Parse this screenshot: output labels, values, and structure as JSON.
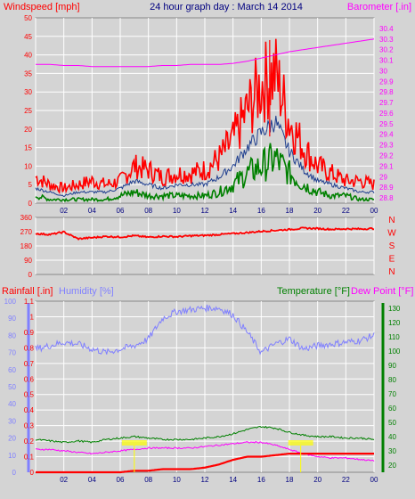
{
  "header": {
    "title": "24 hour graph day : March 14 2014",
    "left_label": "Windspeed [mph]",
    "right_label": "Barometer [.in]"
  },
  "colors": {
    "background": "#d4d4d4",
    "gridline": "#ffffff",
    "axis_text": "#000080",
    "wind_gust": "#ff0000",
    "wind_avg": "#1f3f8f",
    "wind_low": "#008000",
    "barometer": "#ff00ff",
    "direction": "#ff0000",
    "rainfall": "#ff0000",
    "humidity": "#8080ff",
    "temperature": "#008000",
    "dewpoint": "#ff00ff",
    "marker": "#ffff00"
  },
  "hour_labels": [
    "02",
    "04",
    "06",
    "08",
    "10",
    "12",
    "14",
    "16",
    "18",
    "20",
    "22",
    "00"
  ],
  "chart_data": [
    {
      "type": "line",
      "title": "24 hour graph day : March 14 2014",
      "xlabel": "",
      "ylabel": "Windspeed [mph]",
      "y2label": "Barometer [.in]",
      "ylim": [
        0,
        50
      ],
      "y2lim": [
        28.75,
        30.5
      ],
      "yticks": [
        "0",
        "5",
        "10",
        "15",
        "20",
        "25",
        "30",
        "35",
        "40",
        "45",
        "50"
      ],
      "y2ticks": [
        "28.8",
        "28.9",
        "29",
        "29.1",
        "29.2",
        "29.3",
        "29.4",
        "29.5",
        "29.6",
        "29.7",
        "29.8",
        "29.9",
        "30",
        "30.1",
        "30.2",
        "30.3",
        "30.4"
      ],
      "x": [
        0,
        1,
        2,
        3,
        4,
        5,
        6,
        7,
        8,
        9,
        10,
        11,
        12,
        13,
        14,
        15,
        16,
        17,
        18,
        19,
        20,
        21,
        22,
        23,
        24
      ],
      "series": [
        {
          "key": "gust",
          "values": [
            7,
            5,
            4,
            5,
            6,
            5,
            6,
            10,
            9,
            7,
            8,
            8,
            9,
            12,
            17,
            25,
            32,
            35,
            22,
            15,
            10,
            8,
            6,
            6,
            5
          ]
        },
        {
          "key": "avg",
          "values": [
            4,
            3,
            2,
            3,
            3,
            3,
            4,
            6,
            5,
            4,
            5,
            5,
            5,
            7,
            10,
            15,
            19,
            22,
            14,
            9,
            6,
            5,
            4,
            3,
            3
          ]
        },
        {
          "key": "low",
          "values": [
            2,
            1,
            1,
            1,
            1,
            1,
            2,
            3,
            2,
            2,
            2,
            2,
            2,
            3,
            5,
            8,
            10,
            12,
            8,
            5,
            3,
            2,
            2,
            1,
            1
          ]
        },
        {
          "key": "barometer",
          "axis": "y2",
          "values": [
            30.06,
            30.06,
            30.05,
            30.05,
            30.04,
            30.04,
            30.04,
            30.04,
            30.04,
            30.05,
            30.05,
            30.06,
            30.06,
            30.06,
            30.07,
            30.09,
            30.12,
            30.15,
            30.18,
            30.2,
            30.22,
            30.24,
            30.26,
            30.28,
            30.3
          ]
        }
      ]
    },
    {
      "type": "line",
      "ylabel": "",
      "ylim": [
        0,
        360
      ],
      "yticks": [
        "0",
        "90",
        "180",
        "270",
        "360"
      ],
      "compass": [
        "N",
        "W",
        "S",
        "E",
        "N"
      ],
      "x": [
        0,
        1,
        2,
        3,
        4,
        5,
        6,
        7,
        8,
        9,
        10,
        11,
        12,
        13,
        14,
        15,
        16,
        17,
        18,
        19,
        20,
        21,
        22,
        23,
        24
      ],
      "series": [
        {
          "key": "direction",
          "values": [
            258,
            252,
            268,
            225,
            232,
            240,
            236,
            244,
            235,
            241,
            238,
            244,
            246,
            252,
            258,
            264,
            272,
            278,
            284,
            292,
            290,
            285,
            288,
            287,
            290
          ]
        }
      ]
    },
    {
      "type": "line",
      "ylabel": "Rainfall [.in]",
      "y1label": "Humidity [%]",
      "y2label": "Temperature [°F]",
      "y3label": "Dew Point [°F]",
      "ylim": [
        0,
        1.1
      ],
      "y1lim": [
        0,
        100
      ],
      "y2lim": [
        15,
        135
      ],
      "yticks": [
        "0",
        "0.1",
        "0.2",
        "0.3",
        "0.4",
        "0.5",
        "0.6",
        "0.7",
        "0.8",
        "0.9",
        "1",
        "1.1"
      ],
      "y1ticks": [
        "0",
        "10",
        "20",
        "30",
        "40",
        "50",
        "60",
        "70",
        "80",
        "90",
        "100"
      ],
      "y2ticks": [
        "20",
        "30",
        "40",
        "50",
        "60",
        "70",
        "80",
        "90",
        "100",
        "110",
        "120",
        "130"
      ],
      "x": [
        0,
        1,
        2,
        3,
        4,
        5,
        6,
        7,
        8,
        9,
        10,
        11,
        12,
        13,
        14,
        15,
        16,
        17,
        18,
        19,
        20,
        21,
        22,
        23,
        24
      ],
      "series": [
        {
          "key": "humidity",
          "axis": "y1",
          "values": [
            72,
            74,
            76,
            75,
            72,
            70,
            72,
            74,
            78,
            90,
            94,
            95,
            96,
            96,
            92,
            82,
            70,
            75,
            78,
            72,
            74,
            75,
            76,
            77,
            80
          ]
        },
        {
          "key": "temperature",
          "axis": "y2",
          "values": [
            38,
            37,
            36,
            37,
            36,
            38,
            39,
            40,
            39,
            38,
            38,
            38,
            39,
            40,
            42,
            45,
            47,
            46,
            43,
            41,
            40,
            40,
            39,
            39,
            38
          ]
        },
        {
          "key": "dewpoint",
          "axis": "y2",
          "values": [
            31,
            31,
            30,
            29,
            28,
            29,
            30,
            31,
            32,
            32,
            32,
            32,
            33,
            34,
            35,
            36,
            36,
            34,
            31,
            28,
            26,
            25,
            25,
            24,
            23
          ]
        },
        {
          "key": "rainfall",
          "values": [
            0.0,
            0.0,
            0.0,
            0.0,
            0.0,
            0.0,
            0.0,
            0.01,
            0.01,
            0.02,
            0.02,
            0.02,
            0.03,
            0.05,
            0.08,
            0.1,
            0.1,
            0.11,
            0.12,
            0.12,
            0.12,
            0.12,
            0.12,
            0.12,
            0.12
          ]
        }
      ],
      "markers": [
        7.0,
        18.8
      ]
    }
  ]
}
